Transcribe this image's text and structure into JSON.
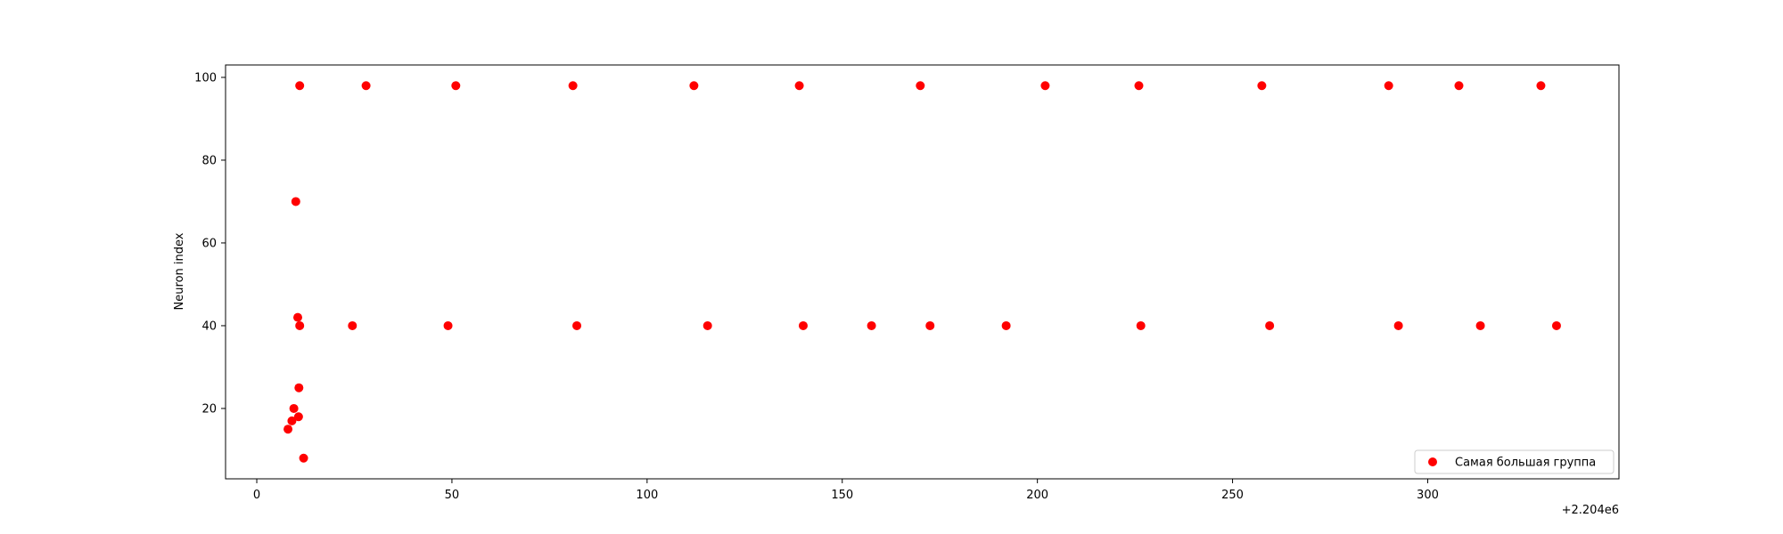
{
  "chart_data": {
    "type": "scatter",
    "title": "",
    "xlabel": "",
    "ylabel": "Neuron index",
    "x_offset_label": "+2.204e6",
    "x_offset": 2204000,
    "xlim": [
      2203992,
      2204349
    ],
    "ylim": [
      3,
      103
    ],
    "x_ticks": [
      2204000,
      2204050,
      2204100,
      2204150,
      2204200,
      2204250,
      2204300
    ],
    "x_tick_labels": [
      "0",
      "50",
      "100",
      "150",
      "200",
      "250",
      "300"
    ],
    "y_ticks": [
      20,
      40,
      60,
      80,
      100
    ],
    "y_tick_labels": [
      "20",
      "40",
      "60",
      "80",
      "100"
    ],
    "grid": false,
    "legend_position": "lower-right",
    "series": [
      {
        "name": "Самая большая группа",
        "color": "#ff0000",
        "points": [
          {
            "x": 2204008,
            "y": 15
          },
          {
            "x": 2204009,
            "y": 17
          },
          {
            "x": 2204009.5,
            "y": 20
          },
          {
            "x": 2204010,
            "y": 70
          },
          {
            "x": 2204010.5,
            "y": 42
          },
          {
            "x": 2204010.7,
            "y": 18
          },
          {
            "x": 2204010.8,
            "y": 25
          },
          {
            "x": 2204011,
            "y": 40
          },
          {
            "x": 2204011,
            "y": 98
          },
          {
            "x": 2204012,
            "y": 8
          },
          {
            "x": 2204024.5,
            "y": 40
          },
          {
            "x": 2204028,
            "y": 98
          },
          {
            "x": 2204049,
            "y": 40
          },
          {
            "x": 2204051,
            "y": 98
          },
          {
            "x": 2204081,
            "y": 98
          },
          {
            "x": 2204082,
            "y": 40
          },
          {
            "x": 2204112,
            "y": 98
          },
          {
            "x": 2204115.5,
            "y": 40
          },
          {
            "x": 2204139,
            "y": 98
          },
          {
            "x": 2204140,
            "y": 40
          },
          {
            "x": 2204157.5,
            "y": 40
          },
          {
            "x": 2204170,
            "y": 98
          },
          {
            "x": 2204172.5,
            "y": 40
          },
          {
            "x": 2204192,
            "y": 40
          },
          {
            "x": 2204202,
            "y": 98
          },
          {
            "x": 2204226,
            "y": 98
          },
          {
            "x": 2204226.5,
            "y": 40
          },
          {
            "x": 2204257.5,
            "y": 98
          },
          {
            "x": 2204259.5,
            "y": 40
          },
          {
            "x": 2204290,
            "y": 98
          },
          {
            "x": 2204292.5,
            "y": 40
          },
          {
            "x": 2204308,
            "y": 98
          },
          {
            "x": 2204313.5,
            "y": 40
          },
          {
            "x": 2204329,
            "y": 98
          },
          {
            "x": 2204333,
            "y": 40
          }
        ]
      }
    ]
  }
}
